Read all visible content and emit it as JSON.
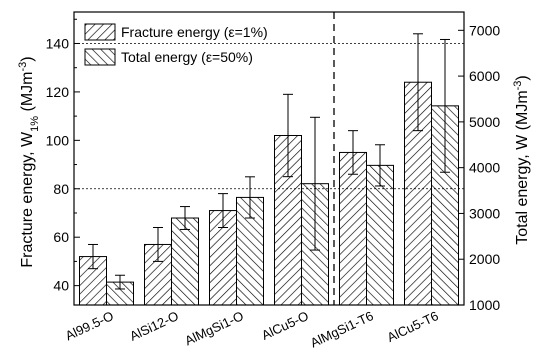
{
  "chart_data": {
    "type": "bar",
    "categories": [
      "Al99.5-O",
      "AlSi12-O",
      "AlMgSi1-O",
      "AlCu5-O",
      "AlMgSi1-T6",
      "AlCu5-T6"
    ],
    "series": [
      {
        "name": "Fracture energy (ε=1%)",
        "axis": "left",
        "pattern": "forward-hatch",
        "values": [
          52,
          57,
          71,
          102,
          95,
          124
        ],
        "error": [
          5,
          7,
          7,
          17,
          9,
          20
        ]
      },
      {
        "name": "Total energy (ε=50%)",
        "axis": "right",
        "pattern": "backward-hatch",
        "values": [
          1500,
          2900,
          3350,
          3650,
          4050,
          5350
        ],
        "error": [
          150,
          250,
          450,
          1450,
          450,
          1450
        ]
      }
    ],
    "ylabel_left_main": "Fracture energy, W",
    "ylabel_left_sub": "1%",
    "ylabel_left_unit": " (MJm",
    "ylabel_left_exp": "-3",
    "ylabel_left_close": ")",
    "ylabel_right_main": "Total energy, W (MJm",
    "ylabel_right_exp": "-3",
    "ylabel_right_close": ")",
    "ylim_left": [
      32,
      153
    ],
    "ylim_right": [
      1000,
      7400
    ],
    "yticks_left": [
      40,
      60,
      80,
      100,
      120,
      140
    ],
    "yticks_right": [
      1000,
      2000,
      3000,
      4000,
      5000,
      6000,
      7000
    ],
    "reference_lines_left": [
      80,
      140
    ],
    "divider_after_category": 3,
    "legend_position": "top-left",
    "grid": false
  }
}
